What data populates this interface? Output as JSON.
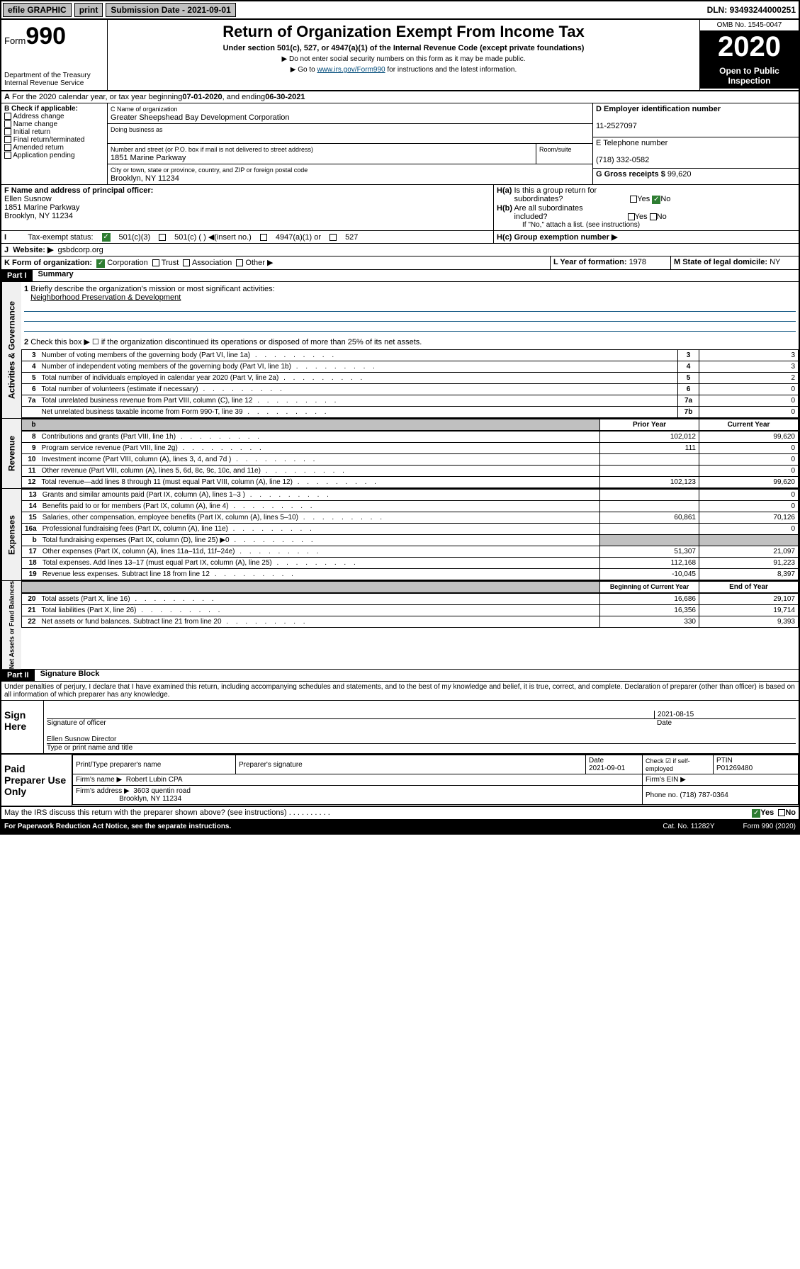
{
  "topbar": {
    "efile": "efile GRAPHIC",
    "print": "print",
    "submission_label": "Submission Date - ",
    "submission_date": "2021-09-01",
    "dln_label": "DLN: ",
    "dln": "93493244000251"
  },
  "header": {
    "form_prefix": "Form",
    "form_number": "990",
    "dept1": "Department of the Treasury",
    "dept2": "Internal Revenue Service",
    "title": "Return of Organization Exempt From Income Tax",
    "subtitle": "Under section 501(c), 527, or 4947(a)(1) of the Internal Revenue Code (except private foundations)",
    "note1": "▶ Do not enter social security numbers on this form as it may be made public.",
    "note2_pre": "▶ Go to ",
    "note2_link": "www.irs.gov/Form990",
    "note2_post": " for instructions and the latest information.",
    "omb": "OMB No. 1545-0047",
    "year": "2020",
    "open": "Open to Public",
    "inspection": "Inspection"
  },
  "period": {
    "text": "For the 2020 calendar year, or tax year beginning ",
    "begin": "07-01-2020",
    "mid": " , and ending ",
    "end": "06-30-2021"
  },
  "boxB": {
    "label": "B Check if applicable:",
    "opts": [
      "Address change",
      "Name change",
      "Initial return",
      "Final return/terminated",
      "Amended return",
      "Application pending"
    ]
  },
  "boxC": {
    "name_label": "C Name of organization",
    "name": "Greater Sheepshead Bay Development Corporation",
    "dba_label": "Doing business as",
    "addr_label": "Number and street (or P.O. box if mail is not delivered to street address)",
    "addr": "1851 Marine Parkway",
    "room_label": "Room/suite",
    "city_label": "City or town, state or province, country, and ZIP or foreign postal code",
    "city": "Brooklyn, NY  11234"
  },
  "boxD": {
    "label": "D Employer identification number",
    "ein": "11-2527097"
  },
  "boxE": {
    "label": "E Telephone number",
    "phone": "(718) 332-0582"
  },
  "boxG": {
    "label": "G Gross receipts $ ",
    "val": "99,620"
  },
  "boxF": {
    "label": "F Name and address of principal officer:",
    "name": "Ellen Susnow",
    "addr1": "1851 Marine Parkway",
    "addr2": "Brooklyn, NY  11234"
  },
  "boxH": {
    "a_label": "H(a) Is this a group return for subordinates?",
    "b_label": "H(b) Are all subordinates included?",
    "b_note": "If \"No,\" attach a list. (see instructions)",
    "c_label": "H(c) Group exemption number ▶",
    "yes": "Yes",
    "no": "No"
  },
  "boxI": {
    "label": "Tax-exempt status:",
    "c3": "501(c)(3)",
    "c": "501(c) ( ) ◀(insert no.)",
    "a1": "4947(a)(1) or",
    "s527": "527"
  },
  "boxJ": {
    "label": "Website: ▶",
    "val": "gsbdcorp.org"
  },
  "boxK": {
    "label": "K Form of organization:",
    "corp": "Corporation",
    "trust": "Trust",
    "assoc": "Association",
    "other": "Other ▶"
  },
  "boxL": {
    "label": "L Year of formation: ",
    "val": "1978"
  },
  "boxM": {
    "label": "M State of legal domicile: ",
    "val": "NY"
  },
  "part1": {
    "hdr": "Part I",
    "title": "Summary",
    "q1": "Briefly describe the organization's mission or most significant activities:",
    "q1_ans": "Neighborhood Preservation & Development",
    "q2": "Check this box ▶ ☐ if the organization discontinued its operations or disposed of more than 25% of its net assets.",
    "rows_gov": [
      {
        "n": "3",
        "d": "Number of voting members of the governing body (Part VI, line 1a)",
        "b": "3",
        "v": "3"
      },
      {
        "n": "4",
        "d": "Number of independent voting members of the governing body (Part VI, line 1b)",
        "b": "4",
        "v": "3"
      },
      {
        "n": "5",
        "d": "Total number of individuals employed in calendar year 2020 (Part V, line 2a)",
        "b": "5",
        "v": "2"
      },
      {
        "n": "6",
        "d": "Total number of volunteers (estimate if necessary)",
        "b": "6",
        "v": "0"
      },
      {
        "n": "7a",
        "d": "Total unrelated business revenue from Part VIII, column (C), line 12",
        "b": "7a",
        "v": "0"
      },
      {
        "n": "",
        "d": "Net unrelated business taxable income from Form 990-T, line 39",
        "b": "7b",
        "v": "0"
      }
    ],
    "col_prior": "Prior Year",
    "col_current": "Current Year",
    "rows_rev": [
      {
        "n": "8",
        "d": "Contributions and grants (Part VIII, line 1h)",
        "p": "102,012",
        "c": "99,620"
      },
      {
        "n": "9",
        "d": "Program service revenue (Part VIII, line 2g)",
        "p": "111",
        "c": "0"
      },
      {
        "n": "10",
        "d": "Investment income (Part VIII, column (A), lines 3, 4, and 7d )",
        "p": "",
        "c": "0"
      },
      {
        "n": "11",
        "d": "Other revenue (Part VIII, column (A), lines 5, 6d, 8c, 9c, 10c, and 11e)",
        "p": "",
        "c": "0"
      },
      {
        "n": "12",
        "d": "Total revenue—add lines 8 through 11 (must equal Part VIII, column (A), line 12)",
        "p": "102,123",
        "c": "99,620"
      }
    ],
    "rows_exp": [
      {
        "n": "13",
        "d": "Grants and similar amounts paid (Part IX, column (A), lines 1–3 )",
        "p": "",
        "c": "0"
      },
      {
        "n": "14",
        "d": "Benefits paid to or for members (Part IX, column (A), line 4)",
        "p": "",
        "c": "0"
      },
      {
        "n": "15",
        "d": "Salaries, other compensation, employee benefits (Part IX, column (A), lines 5–10)",
        "p": "60,861",
        "c": "70,126"
      },
      {
        "n": "16a",
        "d": "Professional fundraising fees (Part IX, column (A), line 11e)",
        "p": "",
        "c": "0"
      },
      {
        "n": "b",
        "d": "Total fundraising expenses (Part IX, column (D), line 25) ▶0",
        "p": "grey",
        "c": "grey"
      },
      {
        "n": "17",
        "d": "Other expenses (Part IX, column (A), lines 11a–11d, 11f–24e)",
        "p": "51,307",
        "c": "21,097"
      },
      {
        "n": "18",
        "d": "Total expenses. Add lines 13–17 (must equal Part IX, column (A), line 25)",
        "p": "112,168",
        "c": "91,223"
      },
      {
        "n": "19",
        "d": "Revenue less expenses. Subtract line 18 from line 12",
        "p": "-10,045",
        "c": "8,397"
      }
    ],
    "col_begin": "Beginning of Current Year",
    "col_end": "End of Year",
    "rows_net": [
      {
        "n": "20",
        "d": "Total assets (Part X, line 16)",
        "p": "16,686",
        "c": "29,107"
      },
      {
        "n": "21",
        "d": "Total liabilities (Part X, line 26)",
        "p": "16,356",
        "c": "19,714"
      },
      {
        "n": "22",
        "d": "Net assets or fund balances. Subtract line 21 from line 20",
        "p": "330",
        "c": "9,393"
      }
    ],
    "vert_gov": "Activities & Governance",
    "vert_rev": "Revenue",
    "vert_exp": "Expenses",
    "vert_net": "Net Assets or Fund Balances"
  },
  "part2": {
    "hdr": "Part II",
    "title": "Signature Block",
    "perjury": "Under penalties of perjury, I declare that I have examined this return, including accompanying schedules and statements, and to the best of my knowledge and belief, it is true, correct, and complete. Declaration of preparer (other than officer) is based on all information of which preparer has any knowledge."
  },
  "sign": {
    "label": "Sign Here",
    "sig_officer": "Signature of officer",
    "date_label": "Date",
    "date": "2021-08-15",
    "name": "Ellen Susnow  Director",
    "type_label": "Type or print name and title"
  },
  "paid": {
    "label": "Paid Preparer Use Only",
    "h1": "Print/Type preparer's name",
    "h2": "Preparer's signature",
    "h3": "Date",
    "h3v": "2021-09-01",
    "h4": "Check ☑ if self-employed",
    "h5": "PTIN",
    "h5v": "P01269480",
    "firm_label": "Firm's name   ▶",
    "firm": "Robert Lubin CPA",
    "ein_label": "Firm's EIN ▶",
    "addr_label": "Firm's address ▶",
    "addr1": "3603 quentin road",
    "addr2": "Brooklyn, NY  11234",
    "phone_label": "Phone no. ",
    "phone": "(718) 787-0364"
  },
  "discuss": {
    "q": "May the IRS discuss this return with the preparer shown above? (see instructions)",
    "yes": "Yes",
    "no": "No"
  },
  "footer": {
    "left": "For Paperwork Reduction Act Notice, see the separate instructions.",
    "mid": "Cat. No. 11282Y",
    "right": "Form 990 (2020)"
  }
}
